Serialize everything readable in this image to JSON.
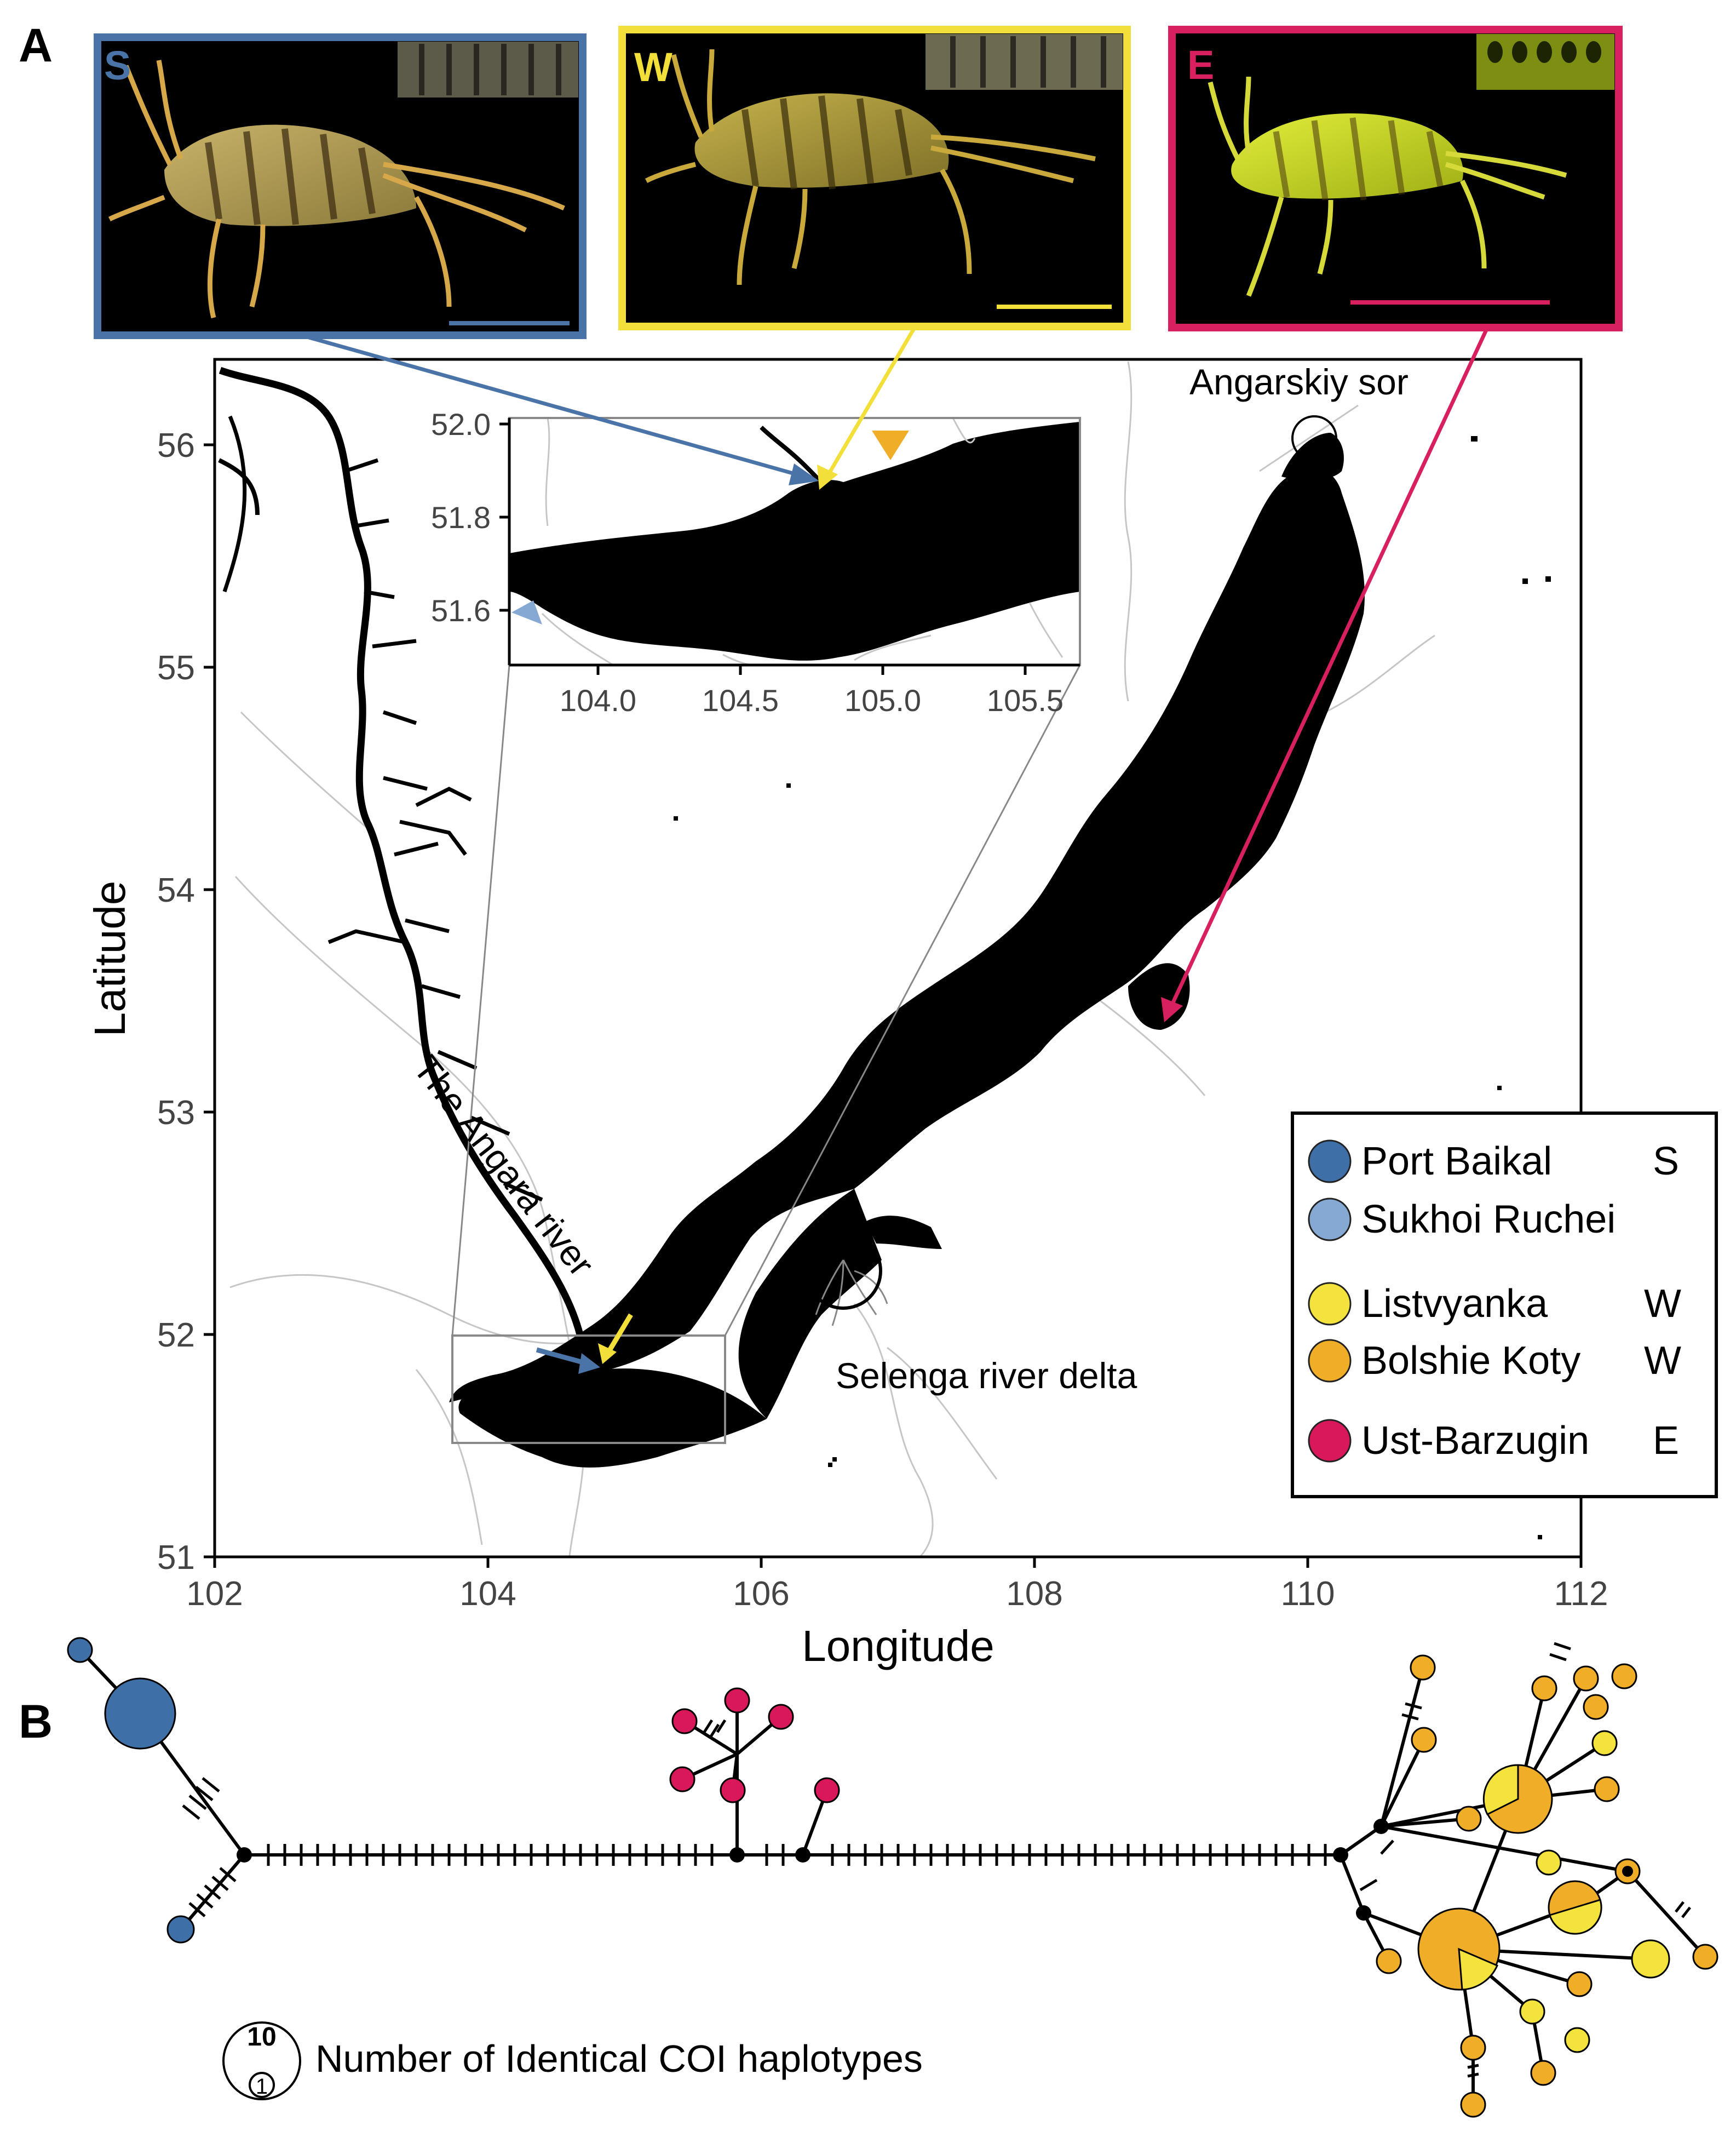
{
  "panels": {
    "a_label": "A",
    "b_label": "B"
  },
  "photos": [
    {
      "letter": "S",
      "color": "#4a74a8"
    },
    {
      "letter": "W",
      "color": "#f2df3a"
    },
    {
      "letter": "E",
      "color": "#d81f5f"
    }
  ],
  "map": {
    "xlabel": "Longitude",
    "ylabel": "Latitude",
    "xticks": [
      "102",
      "104",
      "106",
      "108",
      "110",
      "112"
    ],
    "yticks": [
      "51",
      "52",
      "53",
      "54",
      "55",
      "56"
    ],
    "annotations": {
      "angarskiy": "Angarskiy sor",
      "angara": "The Angara river",
      "selenga": "Selenga river delta"
    },
    "inset": {
      "xticks": [
        "104.0",
        "104.5",
        "105.0",
        "105.5"
      ],
      "yticks": [
        "52.0",
        "51.8",
        "51.6"
      ]
    }
  },
  "legend": {
    "items": [
      {
        "name": "Port Baikal",
        "code": "S",
        "color": "#3e6fa6"
      },
      {
        "name": "Sukhoi Ruchei",
        "code": "",
        "color": "#86a9d3"
      },
      {
        "name": "Listvyanka",
        "code": "W",
        "color": "#f3e33c"
      },
      {
        "name": "Bolshie Koty",
        "code": "W",
        "color": "#f0ae28"
      },
      {
        "name": "Ust-Barzugin",
        "code": "E",
        "color": "#d9175b"
      }
    ]
  },
  "network": {
    "size_key_large": "10",
    "size_key_small": "1",
    "size_key_label": "Number of Identical COI haplotypes"
  }
}
